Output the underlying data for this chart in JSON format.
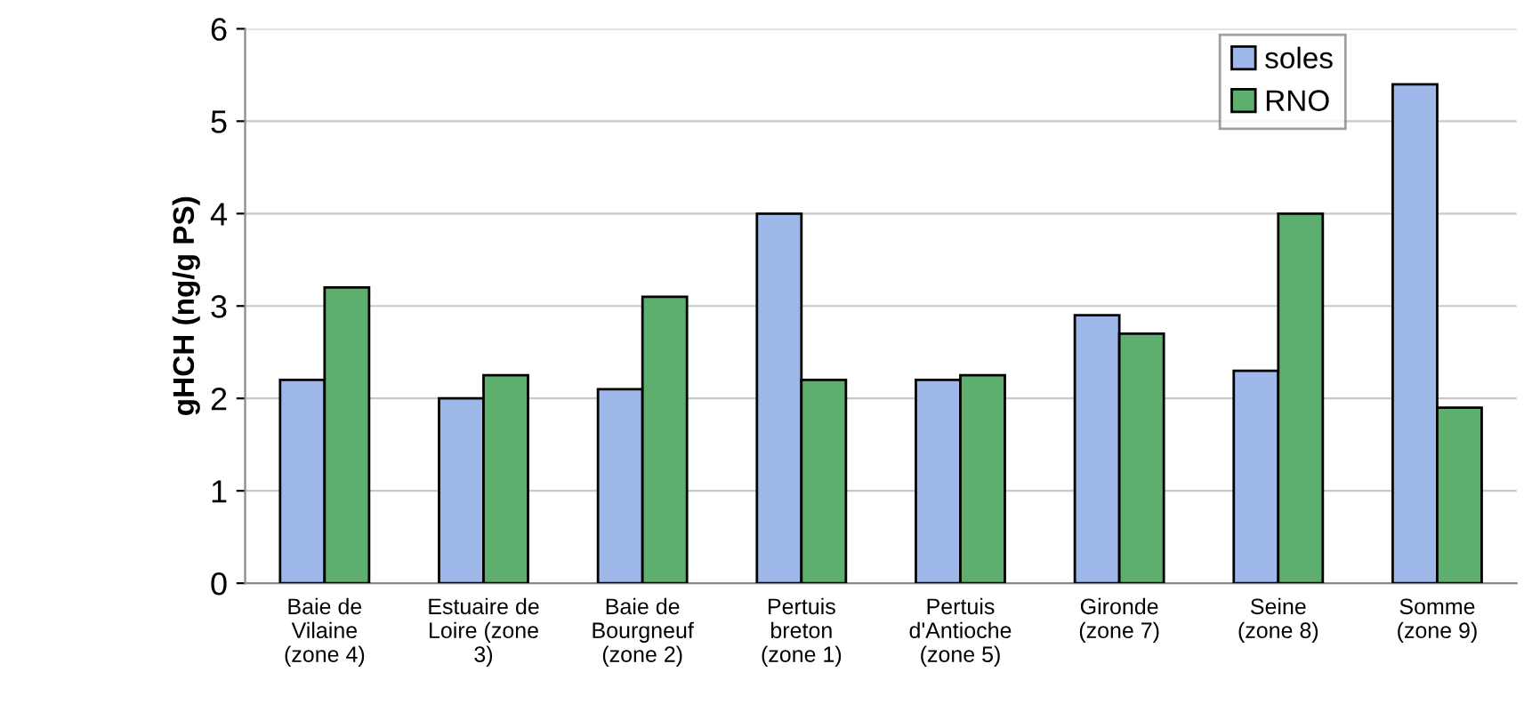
{
  "chart_data": {
    "type": "bar",
    "ylabel": "gHCH (ng/g PS)",
    "categories": [
      "Baie de\nVilaine\n(zone 4)",
      "Estuaire de\nLoire (zone\n3)",
      "Baie de\nBourgneuf\n(zone 2)",
      "Pertuis\nbreton\n(zone 1)",
      "Pertuis\nd'Antioche\n(zone 5)",
      "Gironde\n(zone 7)",
      "Seine\n(zone 8)",
      "Somme\n(zone 9)"
    ],
    "series": [
      {
        "name": "soles",
        "color": "#9fb8ea",
        "values": [
          2.2,
          2.0,
          2.1,
          4.0,
          2.2,
          2.9,
          2.3,
          5.4
        ]
      },
      {
        "name": "RNO",
        "color": "#5eae6e",
        "values": [
          3.2,
          2.25,
          3.1,
          2.2,
          2.25,
          2.7,
          4.0,
          1.9
        ]
      }
    ],
    "ylim": [
      0,
      6
    ],
    "yticks": [
      0,
      1,
      2,
      3,
      4,
      5,
      6
    ],
    "grid": "y",
    "legend": "top right"
  }
}
